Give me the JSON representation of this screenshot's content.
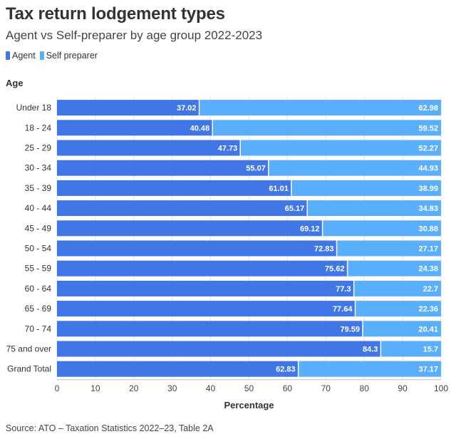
{
  "title": "Tax return lodgement types",
  "subtitle": "Agent vs Self-preparer by age group 2022-2023",
  "legend": [
    {
      "name": "Agent",
      "color": "#4176e6"
    },
    {
      "name": "Self preparer",
      "color": "#5aaffc"
    }
  ],
  "source": "Source: ATO – Taxation Statistics 2022–23, Table 2A",
  "chart_data": {
    "type": "bar",
    "orientation": "horizontal",
    "stacked": true,
    "title": "Tax return lodgement types",
    "subtitle": "Agent vs Self-preparer by age group 2022-2023",
    "ylabel": "Age",
    "xlabel": "Percentage",
    "xlim": [
      0,
      100
    ],
    "xticks": [
      0,
      10,
      20,
      30,
      40,
      50,
      60,
      70,
      80,
      90,
      100
    ],
    "grid": true,
    "legend_position": "top-left",
    "categories": [
      "Under 18",
      "18 - 24",
      "25 - 29",
      "30 - 34",
      "35 - 39",
      "40 - 44",
      "45 - 49",
      "50 - 54",
      "55 - 59",
      "60 - 64",
      "65 - 69",
      "70 - 74",
      "75 and over",
      "Grand Total"
    ],
    "series": [
      {
        "name": "Agent",
        "color": "#4176e6",
        "values": [
          37.02,
          40.48,
          47.73,
          55.07,
          61.01,
          65.17,
          69.12,
          72.83,
          75.62,
          77.3,
          77.64,
          79.59,
          84.3,
          62.83
        ]
      },
      {
        "name": "Self preparer",
        "color": "#5aaffc",
        "values": [
          62.98,
          59.52,
          52.27,
          44.93,
          38.99,
          34.83,
          30.88,
          27.17,
          24.38,
          22.7,
          22.36,
          20.41,
          15.7,
          37.17
        ]
      }
    ]
  }
}
